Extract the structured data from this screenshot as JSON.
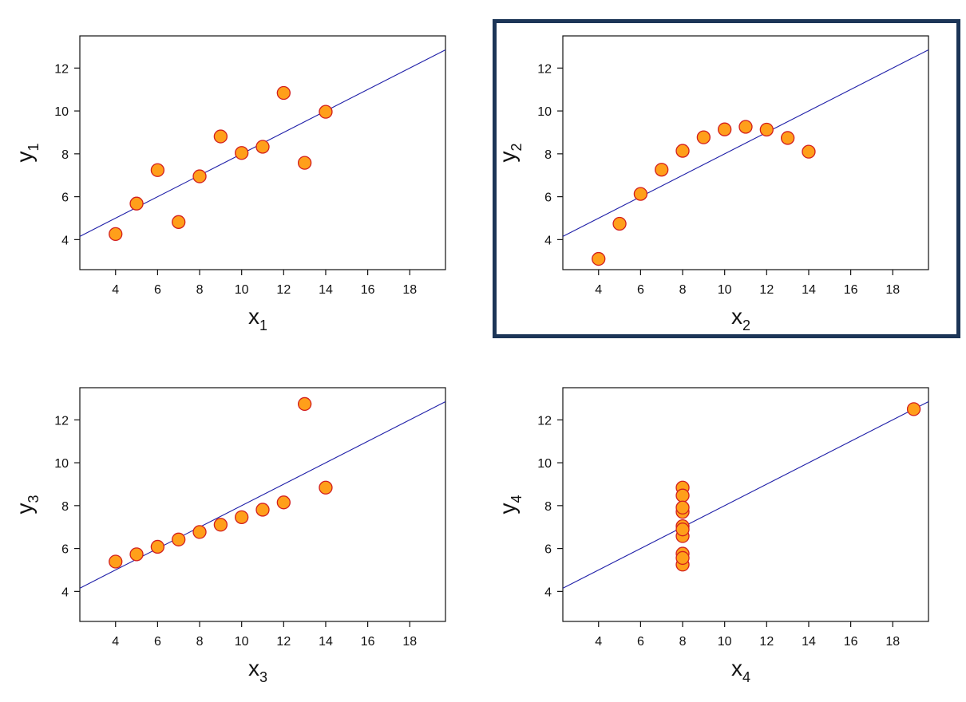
{
  "style": {
    "point_fill": "#FF9F1A",
    "point_stroke": "#D21E1E",
    "line_color": "#1F1FA8",
    "axis_color": "#111111",
    "highlight_border": "#1C3557"
  },
  "chart_data": [
    {
      "type": "scatter",
      "panel": "top-left",
      "highlighted": false,
      "xlabel": {
        "base": "x",
        "sub": "1"
      },
      "ylabel": {
        "base": "y",
        "sub": "1"
      },
      "xlim": [
        2.3,
        19.7
      ],
      "ylim": [
        2.6,
        13.5
      ],
      "xticks": [
        4,
        6,
        8,
        10,
        12,
        14,
        16,
        18
      ],
      "yticks": [
        4,
        6,
        8,
        10,
        12
      ],
      "points": {
        "x": [
          10,
          8,
          13,
          9,
          11,
          14,
          6,
          4,
          12,
          7,
          5
        ],
        "y": [
          8.04,
          6.95,
          7.58,
          8.81,
          8.33,
          9.96,
          7.24,
          4.26,
          10.84,
          4.82,
          5.68
        ]
      },
      "fit": {
        "intercept": 3.0,
        "slope": 0.5
      }
    },
    {
      "type": "scatter",
      "panel": "top-right",
      "highlighted": true,
      "xlabel": {
        "base": "x",
        "sub": "2"
      },
      "ylabel": {
        "base": "y",
        "sub": "2"
      },
      "xlim": [
        2.3,
        19.7
      ],
      "ylim": [
        2.6,
        13.5
      ],
      "xticks": [
        4,
        6,
        8,
        10,
        12,
        14,
        16,
        18
      ],
      "yticks": [
        4,
        6,
        8,
        10,
        12
      ],
      "points": {
        "x": [
          10,
          8,
          13,
          9,
          11,
          14,
          6,
          4,
          12,
          7,
          5
        ],
        "y": [
          9.14,
          8.14,
          8.74,
          8.77,
          9.26,
          8.1,
          6.13,
          3.1,
          9.13,
          7.26,
          4.74
        ]
      },
      "fit": {
        "intercept": 3.0,
        "slope": 0.5
      }
    },
    {
      "type": "scatter",
      "panel": "bottom-left",
      "highlighted": false,
      "xlabel": {
        "base": "x",
        "sub": "3"
      },
      "ylabel": {
        "base": "y",
        "sub": "3"
      },
      "xlim": [
        2.3,
        19.7
      ],
      "ylim": [
        2.6,
        13.5
      ],
      "xticks": [
        4,
        6,
        8,
        10,
        12,
        14,
        16,
        18
      ],
      "yticks": [
        4,
        6,
        8,
        10,
        12
      ],
      "points": {
        "x": [
          10,
          8,
          13,
          9,
          11,
          14,
          6,
          4,
          12,
          7,
          5
        ],
        "y": [
          7.46,
          6.77,
          12.74,
          7.11,
          7.81,
          8.84,
          6.08,
          5.39,
          8.15,
          6.42,
          5.73
        ]
      },
      "fit": {
        "intercept": 3.0,
        "slope": 0.5
      }
    },
    {
      "type": "scatter",
      "panel": "bottom-right",
      "highlighted": false,
      "xlabel": {
        "base": "x",
        "sub": "4"
      },
      "ylabel": {
        "base": "y",
        "sub": "4"
      },
      "xlim": [
        2.3,
        19.7
      ],
      "ylim": [
        2.6,
        13.5
      ],
      "xticks": [
        4,
        6,
        8,
        10,
        12,
        14,
        16,
        18
      ],
      "yticks": [
        4,
        6,
        8,
        10,
        12
      ],
      "points": {
        "x": [
          8,
          8,
          8,
          8,
          8,
          8,
          8,
          19,
          8,
          8,
          8
        ],
        "y": [
          6.58,
          5.76,
          7.71,
          8.84,
          8.47,
          7.04,
          5.25,
          12.5,
          5.56,
          7.91,
          6.89
        ]
      },
      "fit": {
        "intercept": 3.0,
        "slope": 0.5
      }
    }
  ]
}
